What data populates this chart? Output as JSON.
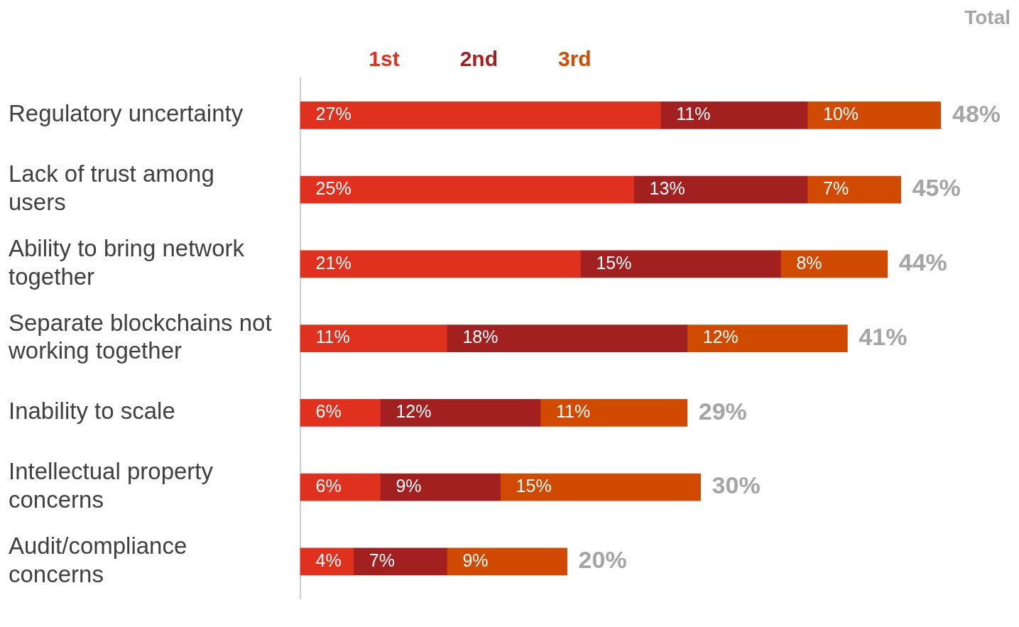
{
  "chart_data": {
    "type": "bar",
    "orientation": "horizontal",
    "stacked": true,
    "categories": [
      "Regulatory uncertainty",
      "Lack of trust among users",
      "Ability to bring network together",
      "Separate blockchains not working together",
      "Inability to scale",
      "Intellectual property concerns",
      "Audit/compliance concerns"
    ],
    "series": [
      {
        "name": "1st",
        "color": "#e0301e",
        "values": [
          27,
          25,
          21,
          11,
          6,
          6,
          4
        ],
        "value_labels": [
          "27%",
          "25%",
          "21%",
          "11%",
          "6%",
          "6%",
          "4%"
        ]
      },
      {
        "name": "2nd",
        "color": "#a32020",
        "values": [
          11,
          13,
          15,
          18,
          12,
          9,
          7
        ],
        "value_labels": [
          "11%",
          "13%",
          "15%",
          "18%",
          "12%",
          "9%",
          "7%"
        ]
      },
      {
        "name": "3rd",
        "color": "#d04a02",
        "values": [
          10,
          7,
          8,
          12,
          11,
          15,
          9
        ],
        "value_labels": [
          "10%",
          "7%",
          "8%",
          "12%",
          "11%",
          "15%",
          "9%"
        ]
      }
    ],
    "totals": [
      "48%",
      "45%",
      "44%",
      "41%",
      "29%",
      "30%",
      "20%"
    ],
    "annotations": [
      "Total"
    ],
    "xlim": [
      0,
      48
    ],
    "tick_labels": "y",
    "grid": false,
    "legend": "top"
  }
}
